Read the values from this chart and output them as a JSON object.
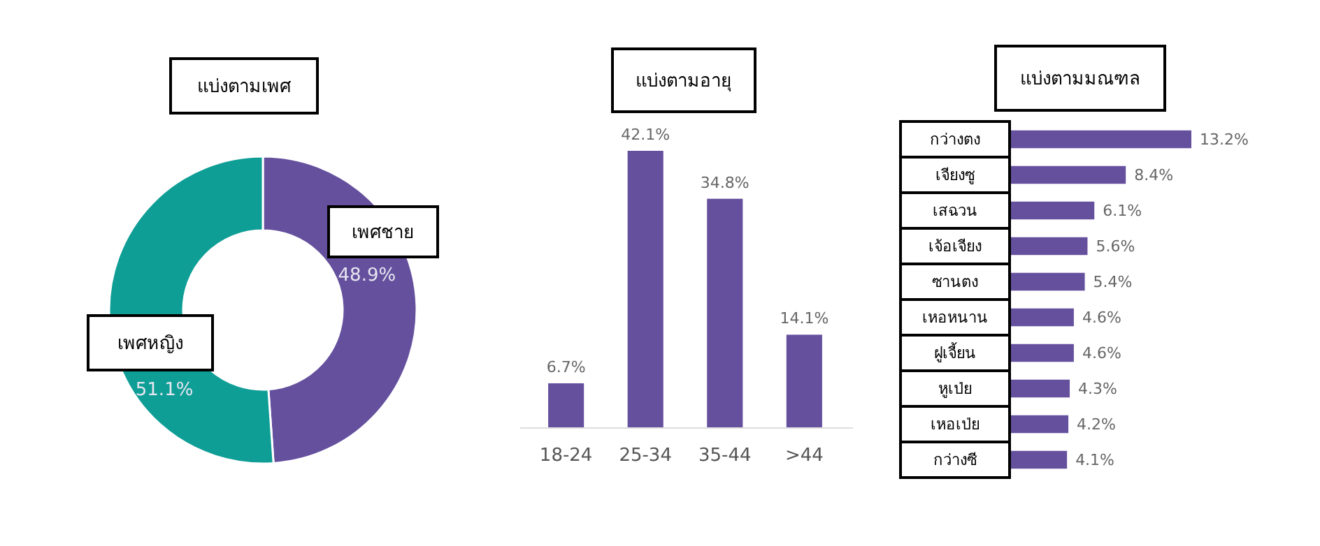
{
  "chart_data": [
    {
      "type": "donut",
      "title": "แบ่งตามเพศ",
      "categories": [
        "เพศชาย",
        "เพศหญิง"
      ],
      "values": [
        48.9,
        51.1
      ],
      "colors": [
        "#65509e",
        "#0e9e96"
      ],
      "value_labels": [
        "48.9%",
        "51.1%"
      ]
    },
    {
      "type": "bar",
      "title": "แบ่งตามอายุ",
      "categories": [
        "18-24",
        "25-34",
        "35-44",
        ">44"
      ],
      "values": [
        6.7,
        42.1,
        34.8,
        14.1
      ],
      "color": "#65509e",
      "value_labels": [
        "6.7%",
        "42.1%",
        "34.8%",
        "14.1%"
      ]
    },
    {
      "type": "bar",
      "orientation": "horizontal",
      "title": "แบ่งตามมณฑล",
      "categories": [
        "กว่างตง",
        "เจียงซู",
        "เสฉวน",
        "เจ้อเจียง",
        "ซานตง",
        "เหอหนาน",
        "ฝูเจี้ยน",
        "หูเป่ย",
        "เหอเป่ย",
        "กว่างซี"
      ],
      "values": [
        13.2,
        8.4,
        6.1,
        5.6,
        5.4,
        4.6,
        4.6,
        4.3,
        4.2,
        4.1
      ],
      "color": "#65509e",
      "value_labels": [
        "13.2%",
        "8.4%",
        "6.1%",
        "5.6%",
        "5.4%",
        "4.6%",
        "4.6%",
        "4.3%",
        "4.2%",
        "4.1%"
      ]
    }
  ]
}
